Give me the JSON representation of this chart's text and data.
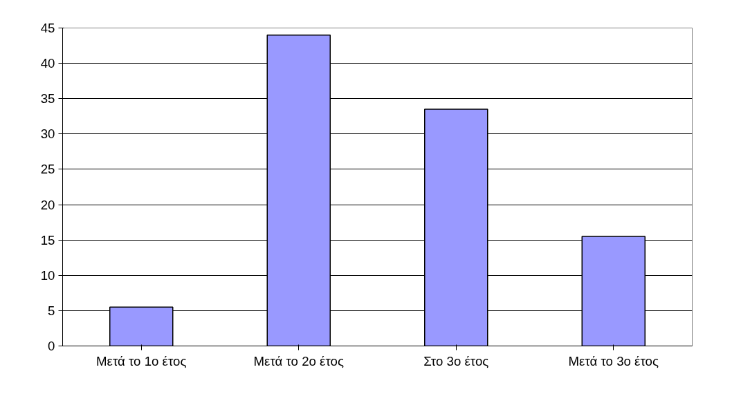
{
  "chart_data": {
    "type": "bar",
    "categories": [
      "Μετά το 1ο έτος",
      "Μετά το 2ο έτος",
      "Στο 3ο έτος",
      "Μετά το 3ο έτος"
    ],
    "values": [
      5.5,
      44,
      33.5,
      15.5
    ],
    "color": "#9999ff",
    "ylim": [
      0,
      45
    ],
    "yticks": [
      0,
      5,
      10,
      15,
      20,
      25,
      30,
      35,
      40,
      45
    ],
    "grid": "y"
  }
}
